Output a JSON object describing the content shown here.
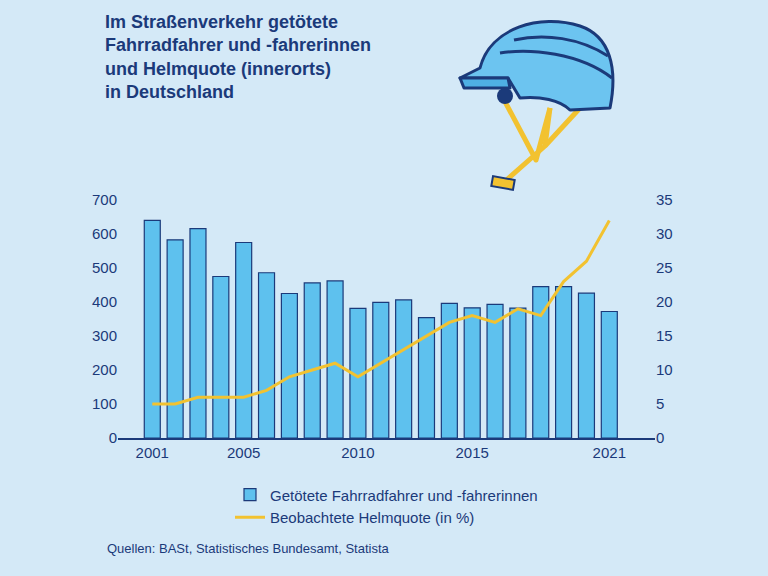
{
  "chart_data": {
    "type": "bar",
    "title": "Im Straßenverkehr getötete\nFahrradfahrer und -fahrerinnen\nund Helmquote (innerorts)\nin Deutschland",
    "source": "Quellen: BASt, Statistisches Bundesamt, Statista",
    "x": [
      2001,
      2002,
      2003,
      2004,
      2005,
      2006,
      2007,
      2008,
      2009,
      2010,
      2011,
      2012,
      2013,
      2014,
      2015,
      2016,
      2017,
      2018,
      2019,
      2020,
      2021
    ],
    "series": [
      {
        "name": "Getötete Fahrradfahrer und -fahrerinnen",
        "type": "bar",
        "color": "#5ec1ee",
        "values": [
          640,
          583,
          616,
          475,
          575,
          486,
          425,
          456,
          462,
          381,
          399,
          406,
          354,
          396,
          383,
          393,
          382,
          445,
          445,
          426,
          372
        ]
      },
      {
        "name": "Beobachtete Helmquote (in %)",
        "type": "line",
        "axis": "y2",
        "color": "#f2c230",
        "line_style": "solid",
        "values": [
          5,
          5,
          6,
          6,
          6,
          7,
          9,
          10,
          11,
          9,
          11,
          13,
          15,
          17,
          18,
          17,
          19,
          18,
          23,
          26,
          32
        ]
      }
    ],
    "xlim": [
      1999.5,
      2023
    ],
    "xticks": [
      2001,
      2005,
      2010,
      2015,
      2021
    ],
    "ylim": [
      0,
      700
    ],
    "yticks": [
      0,
      100,
      200,
      300,
      400,
      500,
      600,
      700
    ],
    "y2lim": [
      0,
      35
    ],
    "y2ticks": [
      0,
      5,
      10,
      15,
      20,
      25,
      30,
      35
    ],
    "grid": false,
    "legend": "bottom"
  }
}
